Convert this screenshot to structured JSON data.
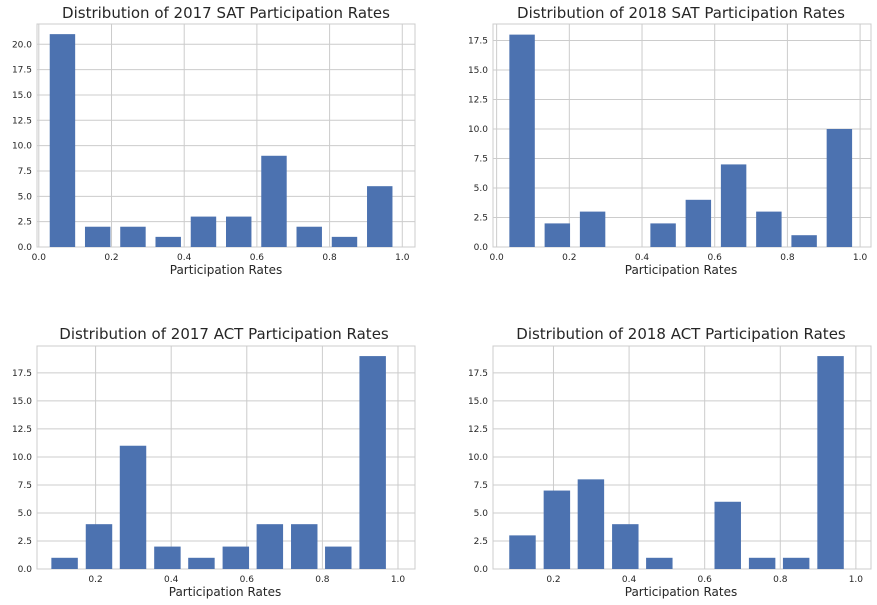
{
  "chart_data": [
    {
      "type": "bar",
      "title": "Distribution of 2017 SAT Participation Rates",
      "xlabel": "Participation Rates",
      "ylabel": "",
      "xlim": [
        -0.005,
        1.035
      ],
      "ylim": [
        0,
        22
      ],
      "xticks": [
        "0.0",
        "0.2",
        "0.4",
        "0.6",
        "0.8",
        "1.0"
      ],
      "yticks": [
        "0.0",
        "2.5",
        "5.0",
        "7.5",
        "10.0",
        "12.5",
        "15.0",
        "17.5",
        "20.0"
      ],
      "bins": [
        [
          0.03,
          0.1
        ],
        [
          0.127,
          0.197
        ],
        [
          0.224,
          0.294
        ],
        [
          0.321,
          0.391
        ],
        [
          0.418,
          0.488
        ],
        [
          0.515,
          0.585
        ],
        [
          0.612,
          0.682
        ],
        [
          0.709,
          0.779
        ],
        [
          0.806,
          0.876
        ],
        [
          0.903,
          0.973
        ]
      ],
      "values": [
        21,
        2,
        2,
        1,
        3,
        3,
        9,
        2,
        1,
        6
      ],
      "grid": true
    },
    {
      "type": "bar",
      "title": "Distribution of 2018 SAT Participation Rates",
      "xlabel": "Participation Rates",
      "ylabel": "",
      "xlim": [
        -0.01,
        1.03
      ],
      "ylim": [
        0,
        18.9
      ],
      "xticks": [
        "0.0",
        "0.2",
        "0.4",
        "0.6",
        "0.8",
        "1.0"
      ],
      "yticks": [
        "0.0",
        "2.5",
        "5.0",
        "7.5",
        "10.0",
        "12.5",
        "15.0",
        "17.5"
      ],
      "bins": [
        [
          0.035,
          0.105
        ],
        [
          0.132,
          0.202
        ],
        [
          0.229,
          0.299
        ],
        [
          0.326,
          0.396
        ],
        [
          0.423,
          0.493
        ],
        [
          0.52,
          0.59
        ],
        [
          0.617,
          0.687
        ],
        [
          0.714,
          0.784
        ],
        [
          0.811,
          0.881
        ],
        [
          0.908,
          0.978
        ]
      ],
      "values": [
        18,
        2,
        3,
        0,
        2,
        4,
        7,
        3,
        1,
        10
      ],
      "grid": true
    },
    {
      "type": "bar",
      "title": "Distribution of 2017 ACT Participation Rates",
      "xlabel": "Participation Rates",
      "ylabel": "",
      "xlim": [
        0.045,
        1.045
      ],
      "ylim": [
        0,
        19.9
      ],
      "xticks": [
        "0.2",
        "0.4",
        "0.6",
        "0.8",
        "1.0"
      ],
      "yticks": [
        "0.0",
        "2.5",
        "5.0",
        "7.5",
        "10.0",
        "12.5",
        "15.0",
        "17.5"
      ],
      "bins": [
        [
          0.083,
          0.153
        ],
        [
          0.174,
          0.244
        ],
        [
          0.264,
          0.334
        ],
        [
          0.355,
          0.425
        ],
        [
          0.445,
          0.515
        ],
        [
          0.536,
          0.606
        ],
        [
          0.626,
          0.696
        ],
        [
          0.717,
          0.787
        ],
        [
          0.807,
          0.877
        ],
        [
          0.898,
          0.968
        ]
      ],
      "values": [
        1,
        4,
        11,
        2,
        1,
        2,
        4,
        4,
        2,
        19
      ],
      "grid": true
    },
    {
      "type": "bar",
      "title": "Distribution of 2018 ACT Participation Rates",
      "xlabel": "Participation Rates",
      "ylabel": "",
      "xlim": [
        0.04,
        1.04
      ],
      "ylim": [
        0,
        19.9
      ],
      "xticks": [
        "0.2",
        "0.4",
        "0.6",
        "0.8",
        "1.0"
      ],
      "yticks": [
        "0.0",
        "2.5",
        "5.0",
        "7.5",
        "10.0",
        "12.5",
        "15.0",
        "17.5"
      ],
      "bins": [
        [
          0.083,
          0.153
        ],
        [
          0.174,
          0.244
        ],
        [
          0.264,
          0.334
        ],
        [
          0.355,
          0.425
        ],
        [
          0.445,
          0.515
        ],
        [
          0.536,
          0.606
        ],
        [
          0.626,
          0.696
        ],
        [
          0.717,
          0.787
        ],
        [
          0.807,
          0.877
        ],
        [
          0.898,
          0.968
        ]
      ],
      "values": [
        3,
        7,
        8,
        4,
        1,
        0,
        6,
        1,
        1,
        19
      ],
      "grid": true
    }
  ],
  "colors": {
    "bar": "#4c72b0",
    "grid": "#cccccc",
    "text": "#262626"
  }
}
